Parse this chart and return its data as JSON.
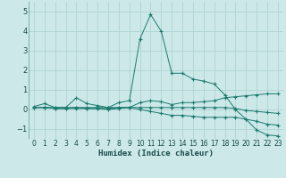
{
  "title": "",
  "xlabel": "Humidex (Indice chaleur)",
  "xlim": [
    -0.5,
    23.5
  ],
  "ylim": [
    -1.5,
    5.5
  ],
  "yticks": [
    -1,
    0,
    1,
    2,
    3,
    4,
    5
  ],
  "xticks": [
    0,
    1,
    2,
    3,
    4,
    5,
    6,
    7,
    8,
    9,
    10,
    11,
    12,
    13,
    14,
    15,
    16,
    17,
    18,
    19,
    20,
    21,
    22,
    23
  ],
  "bg_color": "#cce8e8",
  "line_color": "#1a7a6e",
  "grid_color": "#aacfcf",
  "lines": [
    {
      "x": [
        0,
        1,
        2,
        3,
        4,
        5,
        6,
        7,
        8,
        9,
        10,
        11,
        12,
        13,
        14,
        15,
        16,
        17,
        18,
        19,
        20,
        21,
        22,
        23
      ],
      "y": [
        0.15,
        0.3,
        0.1,
        0.1,
        0.6,
        0.3,
        0.2,
        0.1,
        0.35,
        0.45,
        3.6,
        4.85,
        4.0,
        1.85,
        1.85,
        1.55,
        1.45,
        1.3,
        0.75,
        0.0,
        -0.5,
        -1.05,
        -1.3,
        -1.35
      ]
    },
    {
      "x": [
        0,
        1,
        2,
        3,
        4,
        5,
        6,
        7,
        8,
        9,
        10,
        11,
        12,
        13,
        14,
        15,
        16,
        17,
        18,
        19,
        20,
        21,
        22,
        23
      ],
      "y": [
        0.1,
        0.1,
        0.1,
        0.1,
        0.1,
        0.1,
        0.1,
        0.1,
        0.1,
        0.1,
        0.1,
        0.1,
        0.1,
        0.1,
        0.1,
        0.1,
        0.1,
        0.1,
        0.1,
        0.05,
        -0.05,
        -0.1,
        -0.15,
        -0.2
      ]
    },
    {
      "x": [
        0,
        1,
        2,
        3,
        4,
        5,
        6,
        7,
        8,
        9,
        10,
        11,
        12,
        13,
        14,
        15,
        16,
        17,
        18,
        19,
        20,
        21,
        22,
        23
      ],
      "y": [
        0.1,
        0.1,
        0.05,
        0.05,
        0.05,
        0.05,
        0.05,
        0.0,
        0.05,
        0.1,
        0.35,
        0.45,
        0.4,
        0.25,
        0.35,
        0.35,
        0.4,
        0.45,
        0.6,
        0.65,
        0.7,
        0.75,
        0.8,
        0.8
      ]
    },
    {
      "x": [
        0,
        1,
        2,
        3,
        4,
        5,
        6,
        7,
        8,
        9,
        10,
        11,
        12,
        13,
        14,
        15,
        16,
        17,
        18,
        19,
        20,
        21,
        22,
        23
      ],
      "y": [
        0.1,
        0.1,
        0.05,
        0.05,
        0.1,
        0.05,
        0.05,
        0.05,
        0.1,
        0.1,
        0.0,
        -0.1,
        -0.2,
        -0.3,
        -0.3,
        -0.35,
        -0.4,
        -0.4,
        -0.4,
        -0.4,
        -0.5,
        -0.6,
        -0.75,
        -0.8
      ]
    }
  ]
}
